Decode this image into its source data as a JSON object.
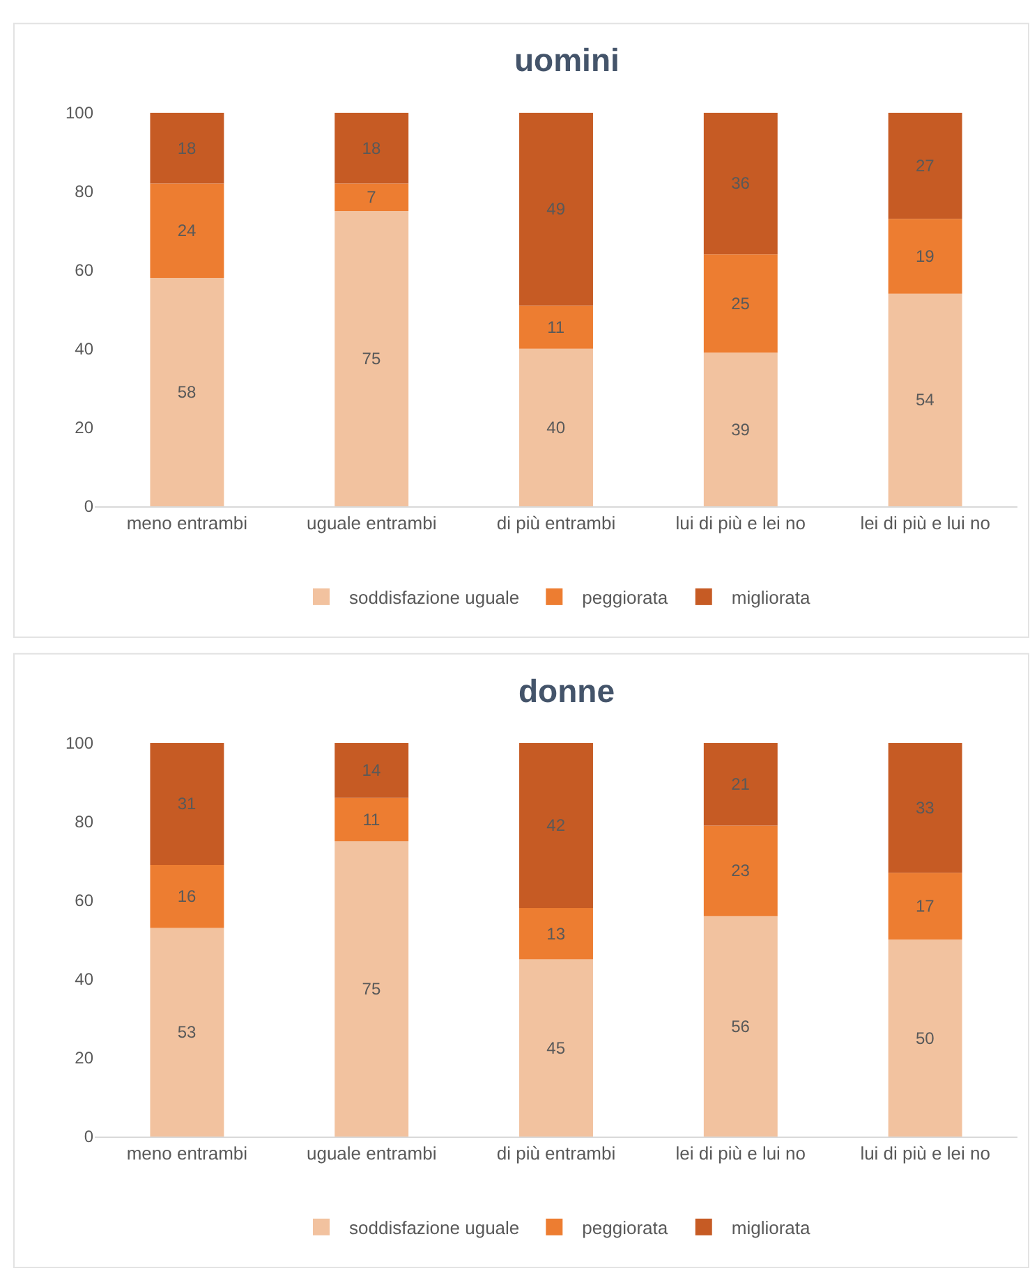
{
  "chart_data": [
    {
      "type": "bar",
      "title": "uomini",
      "categories": [
        "meno entrambi",
        "uguale entrambi",
        "di più entrambi",
        "lui di più e lei no",
        "lei di più e lui no"
      ],
      "series": [
        {
          "name": "soddisfazione uguale",
          "color": "#f2c29f",
          "values": [
            58,
            75,
            40,
            39,
            54
          ]
        },
        {
          "name": "peggiorata",
          "color": "#ed7d31",
          "values": [
            24,
            7,
            11,
            25,
            19
          ]
        },
        {
          "name": "migliorata",
          "color": "#c65b24",
          "values": [
            18,
            18,
            49,
            36,
            27
          ]
        }
      ],
      "stacked": true,
      "ylim": [
        0,
        100
      ],
      "yticks": [
        0,
        20,
        40,
        60,
        80,
        100
      ],
      "data_labels": true,
      "legend": "bottom"
    },
    {
      "type": "bar",
      "title": "donne",
      "categories": [
        "meno entrambi",
        "uguale entrambi",
        "di più entrambi",
        "lei di più e lui no",
        "lui di più e lei no"
      ],
      "series": [
        {
          "name": "soddisfazione uguale",
          "color": "#f2c29f",
          "values": [
            53,
            75,
            45,
            56,
            50
          ]
        },
        {
          "name": "peggiorata",
          "color": "#ed7d31",
          "values": [
            16,
            11,
            13,
            23,
            17
          ]
        },
        {
          "name": "migliorata",
          "color": "#c65b24",
          "values": [
            31,
            14,
            42,
            21,
            33
          ]
        }
      ],
      "stacked": true,
      "ylim": [
        0,
        100
      ],
      "yticks": [
        0,
        20,
        40,
        60,
        80,
        100
      ],
      "data_labels": true,
      "legend": "bottom"
    }
  ]
}
